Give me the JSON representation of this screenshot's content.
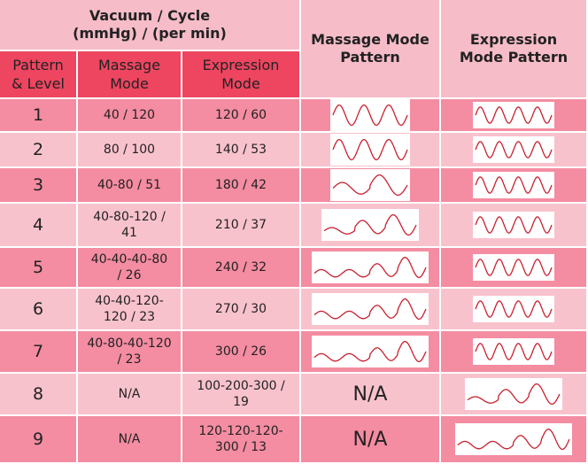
{
  "header": {
    "vacuum_cycle_line1": "Vacuum / Cycle",
    "vacuum_cycle_line2": "(mmHg) / (per min)",
    "massage_pattern_line1": "Massage Mode",
    "massage_pattern_line2": "Pattern",
    "expression_pattern_line1": "Expression",
    "expression_pattern_line2": "Mode Pattern",
    "pattern_level_line1": "Pattern",
    "pattern_level_line2": "& Level",
    "massage_mode_line1": "Massage",
    "massage_mode_line2": "Mode",
    "expression_mode_line1": "Expression",
    "expression_mode_line2": "Mode"
  },
  "rows": [
    {
      "level": "1",
      "massage": [
        "40 / 120"
      ],
      "expression": [
        "120 / 60"
      ],
      "massage_pattern": "wave-3-even",
      "expression_pattern": "wave-4-even"
    },
    {
      "level": "2",
      "massage": [
        "80 / 100"
      ],
      "expression": [
        "140 / 53"
      ],
      "massage_pattern": "wave-3-even",
      "expression_pattern": "wave-4-even"
    },
    {
      "level": "3",
      "massage": [
        "40-80 / 51"
      ],
      "expression": [
        "180 / 42"
      ],
      "massage_pattern": "wave-2-level",
      "expression_pattern": "wave-4-even"
    },
    {
      "level": "4",
      "massage": [
        "40-80-120 /",
        "41"
      ],
      "expression": [
        "210 / 37"
      ],
      "massage_pattern": "wave-3-level",
      "expression_pattern": "wave-4-even"
    },
    {
      "level": "5",
      "massage": [
        "40-40-40-80",
        "/ 26"
      ],
      "expression": [
        "240 / 32"
      ],
      "massage_pattern": "wave-4-level",
      "expression_pattern": "wave-4-even"
    },
    {
      "level": "6",
      "massage": [
        "40-40-120-",
        "120 / 23"
      ],
      "expression": [
        "270 / 30"
      ],
      "massage_pattern": "wave-4-level",
      "expression_pattern": "wave-4-even"
    },
    {
      "level": "7",
      "massage": [
        "40-80-40-120",
        "/ 23"
      ],
      "expression": [
        "300 / 26"
      ],
      "massage_pattern": "wave-4-level",
      "expression_pattern": "wave-4-even"
    },
    {
      "level": "8",
      "massage": [
        "N/A"
      ],
      "expression": [
        "100-200-300 /",
        "19"
      ],
      "massage_pattern_text": "N/A",
      "expression_pattern": "wave-3-level"
    },
    {
      "level": "9",
      "massage": [
        "N/A"
      ],
      "expression": [
        "120-120-120-",
        "300 / 13"
      ],
      "massage_pattern_text": "N/A",
      "expression_pattern": "wave-4-level"
    }
  ],
  "colors": {
    "header_light": "#f6bcc8",
    "header_accent": "#ee4560",
    "row_dark": "#f48ca2",
    "row_light": "#f8c2cd",
    "wave": "#c8202f"
  }
}
